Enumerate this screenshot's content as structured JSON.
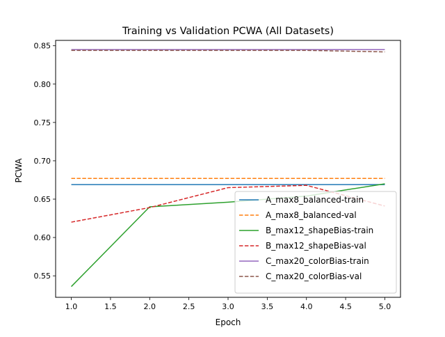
{
  "chart_data": {
    "type": "line",
    "title": "Training vs Validation PCWA (All Datasets)",
    "xlabel": "Epoch",
    "ylabel": "PCWA",
    "xlim": [
      0.8,
      5.2
    ],
    "ylim": [
      0.522,
      0.857
    ],
    "xticks": [
      "1.0",
      "1.5",
      "2.0",
      "2.5",
      "3.0",
      "3.5",
      "4.0",
      "4.5",
      "5.0"
    ],
    "yticks": [
      "0.55",
      "0.60",
      "0.65",
      "0.70",
      "0.75",
      "0.80",
      "0.85"
    ],
    "grid": false,
    "legend_position": "lower-right",
    "x": [
      1,
      2,
      3,
      4,
      5
    ],
    "series": [
      {
        "name": "A_max8_balanced-train",
        "values": [
          0.669,
          0.669,
          0.669,
          0.669,
          0.669
        ],
        "color": "#1f77b4",
        "style": "solid"
      },
      {
        "name": "A_max8_balanced-val",
        "values": [
          0.677,
          0.677,
          0.677,
          0.677,
          0.677
        ],
        "color": "#ff7f0e",
        "style": "dashed"
      },
      {
        "name": "B_max12_shapeBias-train",
        "values": [
          0.536,
          0.64,
          0.646,
          0.654,
          0.67
        ],
        "color": "#2ca02c",
        "style": "solid"
      },
      {
        "name": "B_max12_shapeBias-val",
        "values": [
          0.62,
          0.639,
          0.665,
          0.668,
          0.641
        ],
        "color": "#d62728",
        "style": "dashed"
      },
      {
        "name": "C_max20_colorBias-train",
        "values": [
          0.845,
          0.845,
          0.845,
          0.845,
          0.845
        ],
        "color": "#9467bd",
        "style": "solid"
      },
      {
        "name": "C_max20_colorBias-val",
        "values": [
          0.844,
          0.844,
          0.844,
          0.844,
          0.842
        ],
        "color": "#8c564b",
        "style": "dashed"
      }
    ]
  }
}
